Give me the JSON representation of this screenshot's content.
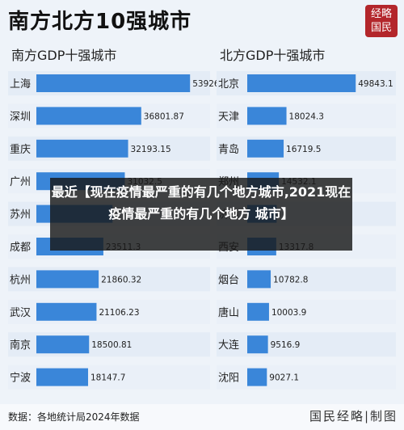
{
  "title": "南方北方10强城市",
  "logo": [
    "经略",
    "国民"
  ],
  "overlay_text": "最近【现在疫情最严重的有几个地方城市,2021现在疫情最严重的有几个地方 城市】",
  "source": "数据：各地统计局2024年数据",
  "brand": "国民经略|制图",
  "colors": {
    "bar": "#3a86d9",
    "bar_light": "#5aa0e6"
  },
  "chart_data": [
    {
      "type": "bar",
      "orientation": "horizontal",
      "title": "南方GDP十强城市",
      "categories": [
        "上海",
        "深圳",
        "重庆",
        "广州",
        "苏州",
        "成都",
        "杭州",
        "武汉",
        "南京",
        "宁波"
      ],
      "values": [
        53926.71,
        36801.87,
        32193.15,
        31032.5,
        26727.0,
        23511.3,
        21860.32,
        21106.23,
        18500.81,
        18147.7
      ],
      "labels": [
        "53926.71",
        "36801.87",
        "32193.15",
        "31032.5",
        "",
        "23511.3",
        "21860.32",
        "21106.23",
        "18500.81",
        "18147.7"
      ],
      "xlim": [
        0,
        55000
      ]
    },
    {
      "type": "bar",
      "orientation": "horizontal",
      "title": "北方GDP十强城市",
      "categories": [
        "北京",
        "天津",
        "青岛",
        "郑州",
        "济南",
        "西安",
        "烟台",
        "唐山",
        "大连",
        "沈阳"
      ],
      "values": [
        49843.1,
        18024.3,
        16719.5,
        14532.1,
        13500.0,
        13317.8,
        10782.8,
        10003.9,
        9516.9,
        9027.1
      ],
      "labels": [
        "49843.1",
        "18024.3",
        "16719.5",
        "14532.1",
        "",
        "13317.8",
        "10782.8",
        "10003.9",
        "9516.9",
        "9027.1"
      ],
      "xlim": [
        0,
        50500
      ]
    }
  ]
}
